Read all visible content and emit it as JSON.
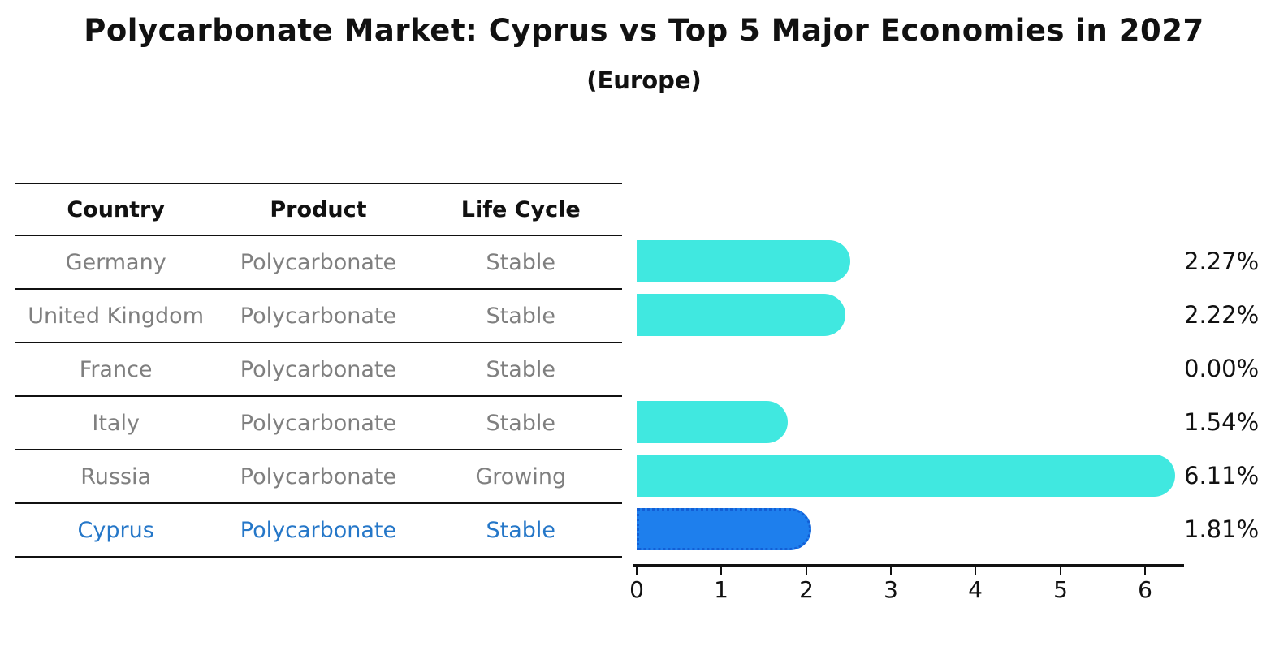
{
  "title": "Polycarbonate Market: Cyprus vs Top 5 Major Economies in 2027",
  "subtitle": "(Europe)",
  "table": {
    "headers": [
      "Country",
      "Product",
      "Life Cycle"
    ],
    "rows": [
      {
        "country": "Germany",
        "product": "Polycarbonate",
        "life_cycle": "Stable"
      },
      {
        "country": "United Kingdom",
        "product": "Polycarbonate",
        "life_cycle": "Stable"
      },
      {
        "country": "France",
        "product": "Polycarbonate",
        "life_cycle": "Stable"
      },
      {
        "country": "Italy",
        "product": "Polycarbonate",
        "life_cycle": "Stable"
      },
      {
        "country": "Russia",
        "product": "Polycarbonate",
        "life_cycle": "Growing"
      },
      {
        "country": "Cyprus",
        "product": "Polycarbonate",
        "life_cycle": "Stable"
      }
    ],
    "highlighted_row": "Cyprus"
  },
  "chart_data": {
    "type": "bar",
    "orientation": "horizontal",
    "title": "Polycarbonate Market: Cyprus vs Top 5 Major Economies in 2027 (Europe)",
    "categories": [
      "Germany",
      "United Kingdom",
      "France",
      "Italy",
      "Russia",
      "Cyprus"
    ],
    "values": [
      2.27,
      2.22,
      0.0,
      1.54,
      6.11,
      1.81
    ],
    "value_labels": [
      "2.27%",
      "2.22%",
      "0.00%",
      "1.54%",
      "6.11%",
      "1.81%"
    ],
    "x_ticks": [
      "0",
      "1",
      "2",
      "3",
      "4",
      "5",
      "6"
    ],
    "xlim": [
      0,
      6.45
    ],
    "grid": false,
    "legend": false,
    "highlight_index": 5,
    "bar_color": "#40E8E0",
    "highlight_bar_color": "#1E7FED",
    "highlight_border_color": "#135FD6",
    "highlight_text_color": "#2577C8",
    "table_text_color": "#7f7f7f",
    "axis_color": "#111111"
  }
}
